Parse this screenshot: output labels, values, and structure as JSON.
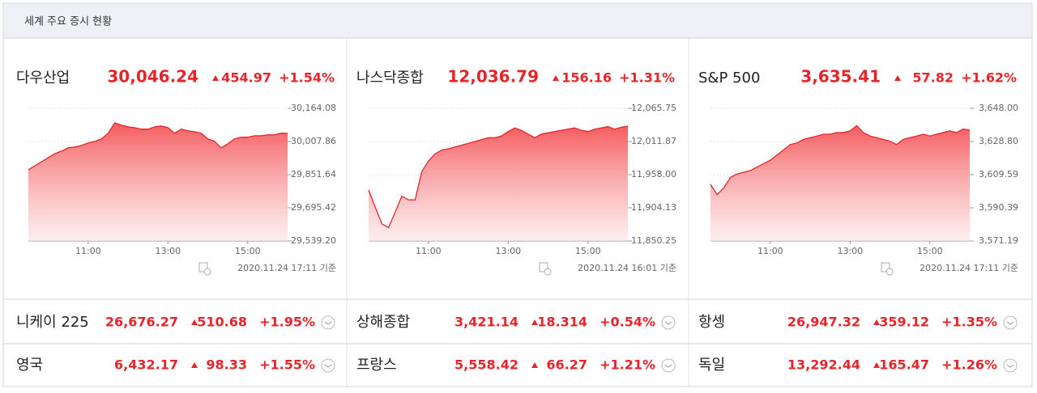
{
  "header": {
    "title": "세계 주요 증시 현황"
  },
  "panels": [
    {
      "name": "다우산업",
      "value": "30,046.24",
      "change": "454.97",
      "percent": "+1.54%",
      "timestamp": "2020.11.24 17:11 기준",
      "chart": {
        "type": "area",
        "color": "#e4262b",
        "x": [
          "09:30",
          "09:40",
          "09:50",
          "10:00",
          "10:10",
          "10:20",
          "10:30",
          "10:40",
          "10:50",
          "11:00",
          "11:10",
          "11:20",
          "11:30",
          "11:40",
          "11:50",
          "12:00",
          "12:10",
          "12:20",
          "12:30",
          "12:40",
          "12:50",
          "13:00",
          "13:10",
          "13:20",
          "13:30",
          "13:40",
          "13:50",
          "14:00",
          "14:10",
          "14:20",
          "14:30",
          "14:40",
          "14:50",
          "15:00",
          "15:10",
          "15:20",
          "15:30",
          "15:40",
          "15:50",
          "16:00"
        ],
        "values": [
          29875,
          29894,
          29913,
          29932,
          29951,
          29963,
          29978,
          29982,
          29989,
          30001,
          30009,
          30020,
          30047,
          30096,
          30085,
          30077,
          30073,
          30066,
          30066,
          30077,
          30081,
          30073,
          30047,
          30066,
          30058,
          30054,
          30047,
          30020,
          30009,
          29978,
          29997,
          30020,
          30028,
          30028,
          30035,
          30035,
          30039,
          30039,
          30047,
          30046.24
        ],
        "ylim": [
          29539.2,
          30164.08
        ],
        "yticks": [
          {
            "value": 30164.08,
            "label": "30,164.08"
          },
          {
            "value": 30007.86,
            "label": "30,007.86"
          },
          {
            "value": 29851.64,
            "label": "29,851.64"
          },
          {
            "value": 29695.42,
            "label": "29,695.42"
          },
          {
            "value": 29539.2,
            "label": "29,539.20"
          }
        ],
        "xticks": [
          "11:00",
          "13:00",
          "15:00"
        ]
      }
    },
    {
      "name": "나스닥종합",
      "value": "12,036.79",
      "change": "156.16",
      "percent": "+1.31%",
      "timestamp": "2020.11.24 16:01 기준",
      "chart": {
        "type": "area",
        "color": "#e4262b",
        "x": [
          "09:30",
          "09:40",
          "09:50",
          "10:00",
          "10:10",
          "10:20",
          "10:30",
          "10:40",
          "10:50",
          "11:00",
          "11:10",
          "11:20",
          "11:30",
          "11:40",
          "11:50",
          "12:00",
          "12:10",
          "12:20",
          "12:30",
          "12:40",
          "12:50",
          "13:00",
          "13:10",
          "13:20",
          "13:30",
          "13:40",
          "13:50",
          "14:00",
          "14:10",
          "14:20",
          "14:30",
          "14:40",
          "14:50",
          "15:00",
          "15:10",
          "15:20",
          "15:30",
          "15:40",
          "15:50",
          "16:00"
        ],
        "values": [
          11933,
          11905,
          11878,
          11872,
          11897,
          11923,
          11917,
          11917,
          11963,
          11980,
          11992,
          11998,
          12000,
          12003,
          12006,
          12009,
          12012,
          12015,
          12018,
          12018,
          12021,
          12028,
          12034,
          12030,
          12024,
          12018,
          12024,
          12026,
          12028,
          12030,
          12032,
          12034,
          12030,
          12028,
          12032,
          12034,
          12036,
          12032,
          12035,
          12036.79
        ],
        "ylim": [
          11850.25,
          12065.75
        ],
        "yticks": [
          {
            "value": 12065.75,
            "label": "12,065.75"
          },
          {
            "value": 12011.87,
            "label": "12,011.87"
          },
          {
            "value": 11958,
            "label": "11,958.00"
          },
          {
            "value": 11904.13,
            "label": "11,904.13"
          },
          {
            "value": 11850.25,
            "label": "11,850.25"
          }
        ],
        "xticks": [
          "11:00",
          "13:00",
          "15:00"
        ]
      }
    },
    {
      "name": "S&P 500",
      "value": "3,635.41",
      "change": "57.82",
      "percent": "+1.62%",
      "timestamp": "2020.11.24 17:11 기준",
      "chart": {
        "type": "area",
        "color": "#e4262b",
        "x": [
          "09:30",
          "09:40",
          "09:50",
          "10:00",
          "10:10",
          "10:20",
          "10:30",
          "10:40",
          "10:50",
          "11:00",
          "11:10",
          "11:20",
          "11:30",
          "11:40",
          "11:50",
          "12:00",
          "12:10",
          "12:20",
          "12:30",
          "12:40",
          "12:50",
          "13:00",
          "13:10",
          "13:20",
          "13:30",
          "13:40",
          "13:50",
          "14:00",
          "14:10",
          "14:20",
          "14:30",
          "14:40",
          "14:50",
          "15:00",
          "15:10",
          "15:20",
          "15:30",
          "15:40",
          "15:50",
          "16:00"
        ],
        "values": [
          3604,
          3598,
          3602,
          3608,
          3610,
          3611,
          3612,
          3614,
          3616,
          3618,
          3621,
          3624,
          3627,
          3628,
          3630,
          3631,
          3632,
          3633,
          3633,
          3634,
          3634,
          3635,
          3638,
          3634,
          3632,
          3631,
          3630,
          3629,
          3627,
          3630,
          3631,
          3632,
          3633,
          3632,
          3633,
          3634,
          3635,
          3634,
          3636,
          3635.41
        ],
        "ylim": [
          3571.19,
          3648
        ],
        "yticks": [
          {
            "value": 3648,
            "label": "3,648.00"
          },
          {
            "value": 3628.8,
            "label": "3,628.80"
          },
          {
            "value": 3609.59,
            "label": "3,609.59"
          },
          {
            "value": 3590.39,
            "label": "3,590.39"
          },
          {
            "value": 3571.19,
            "label": "3,571.19"
          }
        ],
        "xticks": [
          "11:00",
          "13:00",
          "15:00"
        ]
      }
    }
  ],
  "rows": [
    [
      {
        "name": "니케이 225",
        "value": "26,676.27",
        "change": "510.68",
        "percent": "+1.95%"
      },
      {
        "name": "상해종합",
        "value": "3,421.14",
        "change": "18.314",
        "percent": "+0.54%"
      },
      {
        "name": "항셍",
        "value": "26,947.32",
        "change": "359.12",
        "percent": "+1.35%"
      }
    ],
    [
      {
        "name": "영국",
        "value": "6,432.17",
        "change": "98.33",
        "percent": "+1.55%"
      },
      {
        "name": "프랑스",
        "value": "5,558.42",
        "change": "66.27",
        "percent": "+1.21%"
      },
      {
        "name": "독일",
        "value": "13,292.44",
        "change": "165.47",
        "percent": "+1.26%"
      }
    ]
  ]
}
